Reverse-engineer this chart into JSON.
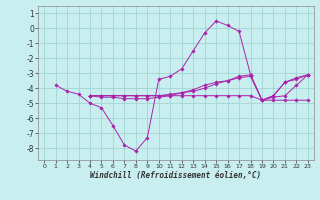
{
  "xlabel": "Windchill (Refroidissement éolien,°C)",
  "background_color": "#c8eef0",
  "grid_color": "#9ecfcd",
  "line_color": "#aa22aa",
  "xlim": [
    -0.5,
    23.5
  ],
  "ylim": [
    -8.8,
    1.5
  ],
  "xticks": [
    0,
    1,
    2,
    3,
    4,
    5,
    6,
    7,
    8,
    9,
    10,
    11,
    12,
    13,
    14,
    15,
    16,
    17,
    18,
    19,
    20,
    21,
    22,
    23
  ],
  "yticks": [
    1,
    0,
    -1,
    -2,
    -3,
    -4,
    -5,
    -6,
    -7,
    -8
  ],
  "series": [
    [
      null,
      -3.8,
      -4.2,
      -4.4,
      -5.0,
      -5.3,
      -6.5,
      -7.8,
      -8.2,
      -7.3,
      -3.4,
      -3.2,
      -2.7,
      -1.5,
      -0.3,
      0.5,
      0.2,
      -0.2,
      -3.1,
      -4.8,
      -4.6,
      -4.5,
      -3.8,
      -3.1
    ],
    [
      null,
      null,
      null,
      null,
      -4.5,
      -4.5,
      -4.5,
      -4.5,
      -4.5,
      -4.5,
      -4.5,
      -4.5,
      -4.5,
      -4.5,
      -4.5,
      -4.5,
      -4.5,
      -4.5,
      -4.5,
      -4.8,
      -4.8,
      -4.8,
      -4.8,
      -4.8
    ],
    [
      null,
      null,
      null,
      null,
      -4.5,
      -4.6,
      -4.6,
      -4.7,
      -4.7,
      -4.7,
      -4.6,
      -4.5,
      -4.3,
      -4.1,
      -3.8,
      -3.6,
      -3.5,
      -3.2,
      -3.1,
      -4.8,
      -4.5,
      -3.6,
      -3.4,
      -3.1
    ],
    [
      null,
      null,
      null,
      null,
      -4.5,
      -4.5,
      -4.5,
      -4.5,
      -4.5,
      -4.5,
      -4.5,
      -4.4,
      -4.3,
      -4.2,
      -4.0,
      -3.7,
      -3.5,
      -3.3,
      -3.2,
      -4.8,
      -4.5,
      -3.6,
      -3.3,
      -3.1
    ]
  ]
}
